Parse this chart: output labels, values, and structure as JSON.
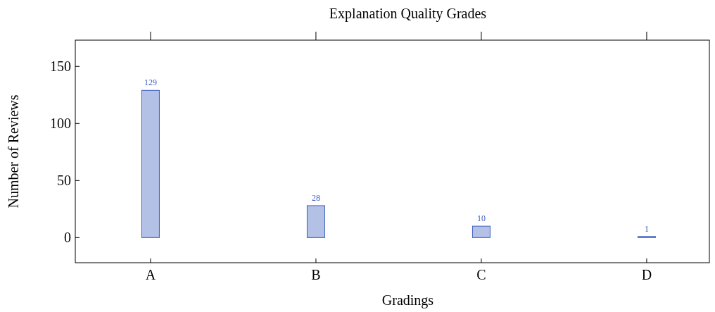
{
  "chart_data": {
    "type": "bar",
    "title": "Explanation Quality Grades",
    "xlabel": "Gradings",
    "ylabel": "Number of Reviews",
    "categories": [
      "A",
      "B",
      "C",
      "D"
    ],
    "series": [
      {
        "color": "#3b5cc0",
        "values": [
          129,
          28,
          10,
          1
        ]
      }
    ],
    "ylim": [
      -22,
      173
    ],
    "yticks": [
      0,
      50,
      100,
      150
    ],
    "data_labels": true,
    "grid": false
  }
}
